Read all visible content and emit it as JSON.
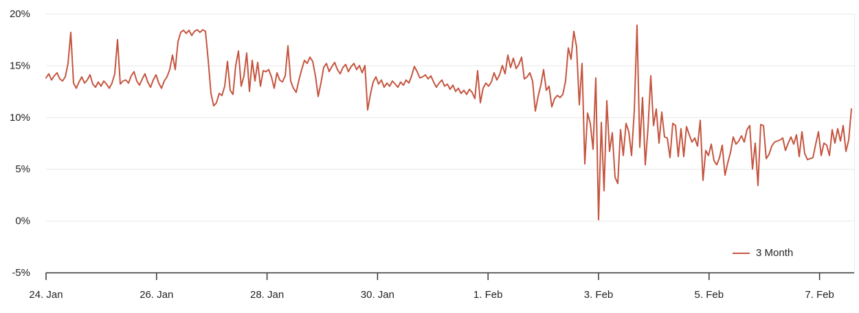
{
  "colors": {
    "line": "#c4543e",
    "grid": "#e6e6e6",
    "axis": "#333333",
    "text": "#222222",
    "background": "#ffffff"
  },
  "chart_data": {
    "type": "line",
    "title": "",
    "xlabel": "",
    "ylabel": "",
    "ylim": [
      -5,
      20
    ],
    "grid": "horizontal-only",
    "legend_position": "bottom-right",
    "x_start": "24. Jan",
    "interval_hours": 1.194,
    "y_ticks": [
      {
        "label": "20%",
        "value": 20
      },
      {
        "label": "15%",
        "value": 15
      },
      {
        "label": "10%",
        "value": 10
      },
      {
        "label": "5%",
        "value": 5
      },
      {
        "label": "0%",
        "value": 0
      },
      {
        "label": "-5%",
        "value": -5
      }
    ],
    "x_ticks": [
      {
        "label": "24. Jan",
        "day": 0
      },
      {
        "label": "26. Jan",
        "day": 2
      },
      {
        "label": "28. Jan",
        "day": 4
      },
      {
        "label": "30. Jan",
        "day": 6
      },
      {
        "label": "1. Feb",
        "day": 8
      },
      {
        "label": "3. Feb",
        "day": 10
      },
      {
        "label": "5. Feb",
        "day": 12
      },
      {
        "label": "7. Feb",
        "day": 14
      }
    ],
    "series": [
      {
        "name": "3 Month",
        "unit": "%",
        "values": [
          13.8,
          14.2,
          13.6,
          14.0,
          14.3,
          13.7,
          13.5,
          13.9,
          15.2,
          18.2,
          13.3,
          12.8,
          13.4,
          13.9,
          13.3,
          13.6,
          14.1,
          13.2,
          12.9,
          13.4,
          13.0,
          13.5,
          13.2,
          12.8,
          13.3,
          14.2,
          17.5,
          13.2,
          13.5,
          13.6,
          13.3,
          14.0,
          14.4,
          13.5,
          13.1,
          13.7,
          14.2,
          13.4,
          12.9,
          13.6,
          14.1,
          13.3,
          12.8,
          13.5,
          13.9,
          14.6,
          16.0,
          14.6,
          17.3,
          18.2,
          18.4,
          18.1,
          18.4,
          17.9,
          18.3,
          18.45,
          18.2,
          18.45,
          18.3,
          15.5,
          12.3,
          11.1,
          11.4,
          12.3,
          12.1,
          13.0,
          15.4,
          12.6,
          12.2,
          15.0,
          16.4,
          13.0,
          14.0,
          16.2,
          12.5,
          15.5,
          13.5,
          15.3,
          13.0,
          14.5,
          14.4,
          14.6,
          13.9,
          12.8,
          14.3,
          13.6,
          13.4,
          14.0,
          16.9,
          13.5,
          12.8,
          12.4,
          13.6,
          14.6,
          15.5,
          15.2,
          15.8,
          15.4,
          14.0,
          12.0,
          13.3,
          14.8,
          15.2,
          14.4,
          14.9,
          15.3,
          14.6,
          14.2,
          14.8,
          15.1,
          14.4,
          14.9,
          15.2,
          14.6,
          15.0,
          14.3,
          15.0,
          10.7,
          12.2,
          13.4,
          13.9,
          13.2,
          13.6,
          12.9,
          13.3,
          13.0,
          13.5,
          13.2,
          12.9,
          13.4,
          13.1,
          13.6,
          13.3,
          14.0,
          14.9,
          14.4,
          13.8,
          13.9,
          14.1,
          13.7,
          14.0,
          13.4,
          12.9,
          13.3,
          13.6,
          13.0,
          13.2,
          12.7,
          13.1,
          12.5,
          12.8,
          12.3,
          12.6,
          12.2,
          12.7,
          12.4,
          11.8,
          14.5,
          11.4,
          12.8,
          13.3,
          13.0,
          13.4,
          14.3,
          13.6,
          14.1,
          15.0,
          14.2,
          16.0,
          14.8,
          15.7,
          14.7,
          15.1,
          15.8,
          13.7,
          13.9,
          14.3,
          13.5,
          10.6,
          12.0,
          13.1,
          14.6,
          12.6,
          13.0,
          11.0,
          11.8,
          12.1,
          11.9,
          12.2,
          13.5,
          16.7,
          15.6,
          18.3,
          16.8,
          11.2,
          15.2,
          5.5,
          10.4,
          9.4,
          6.9,
          13.8,
          0.1,
          9.5,
          2.9,
          11.6,
          6.7,
          8.5,
          4.2,
          3.6,
          8.8,
          6.3,
          9.4,
          8.6,
          6.3,
          10.6,
          18.9,
          7.1,
          11.9,
          5.4,
          9.0,
          14.0,
          9.2,
          10.8,
          7.5,
          10.5,
          8.1,
          8.0,
          6.1,
          9.4,
          9.2,
          6.2,
          8.9,
          6.2,
          9.1,
          8.3,
          7.6,
          8.0,
          7.2,
          9.7,
          3.9,
          6.8,
          6.3,
          7.4,
          5.8,
          5.4,
          6.1,
          7.3,
          4.4,
          5.6,
          6.6,
          8.1,
          7.4,
          7.7,
          8.2,
          7.6,
          8.8,
          9.2,
          5.0,
          7.5,
          3.4,
          9.3,
          9.2,
          6.0,
          6.4,
          7.2,
          7.6,
          7.7,
          7.8,
          8.0,
          6.8,
          7.5,
          8.1,
          7.4,
          8.3,
          6.2,
          8.6,
          6.5,
          5.9,
          6.0,
          6.1,
          7.4,
          8.6,
          6.3,
          7.5,
          7.3,
          6.3,
          8.8,
          7.5,
          8.9,
          7.7,
          9.2,
          6.7,
          7.8,
          10.8
        ]
      }
    ]
  },
  "legend": {
    "label": "3 Month"
  }
}
